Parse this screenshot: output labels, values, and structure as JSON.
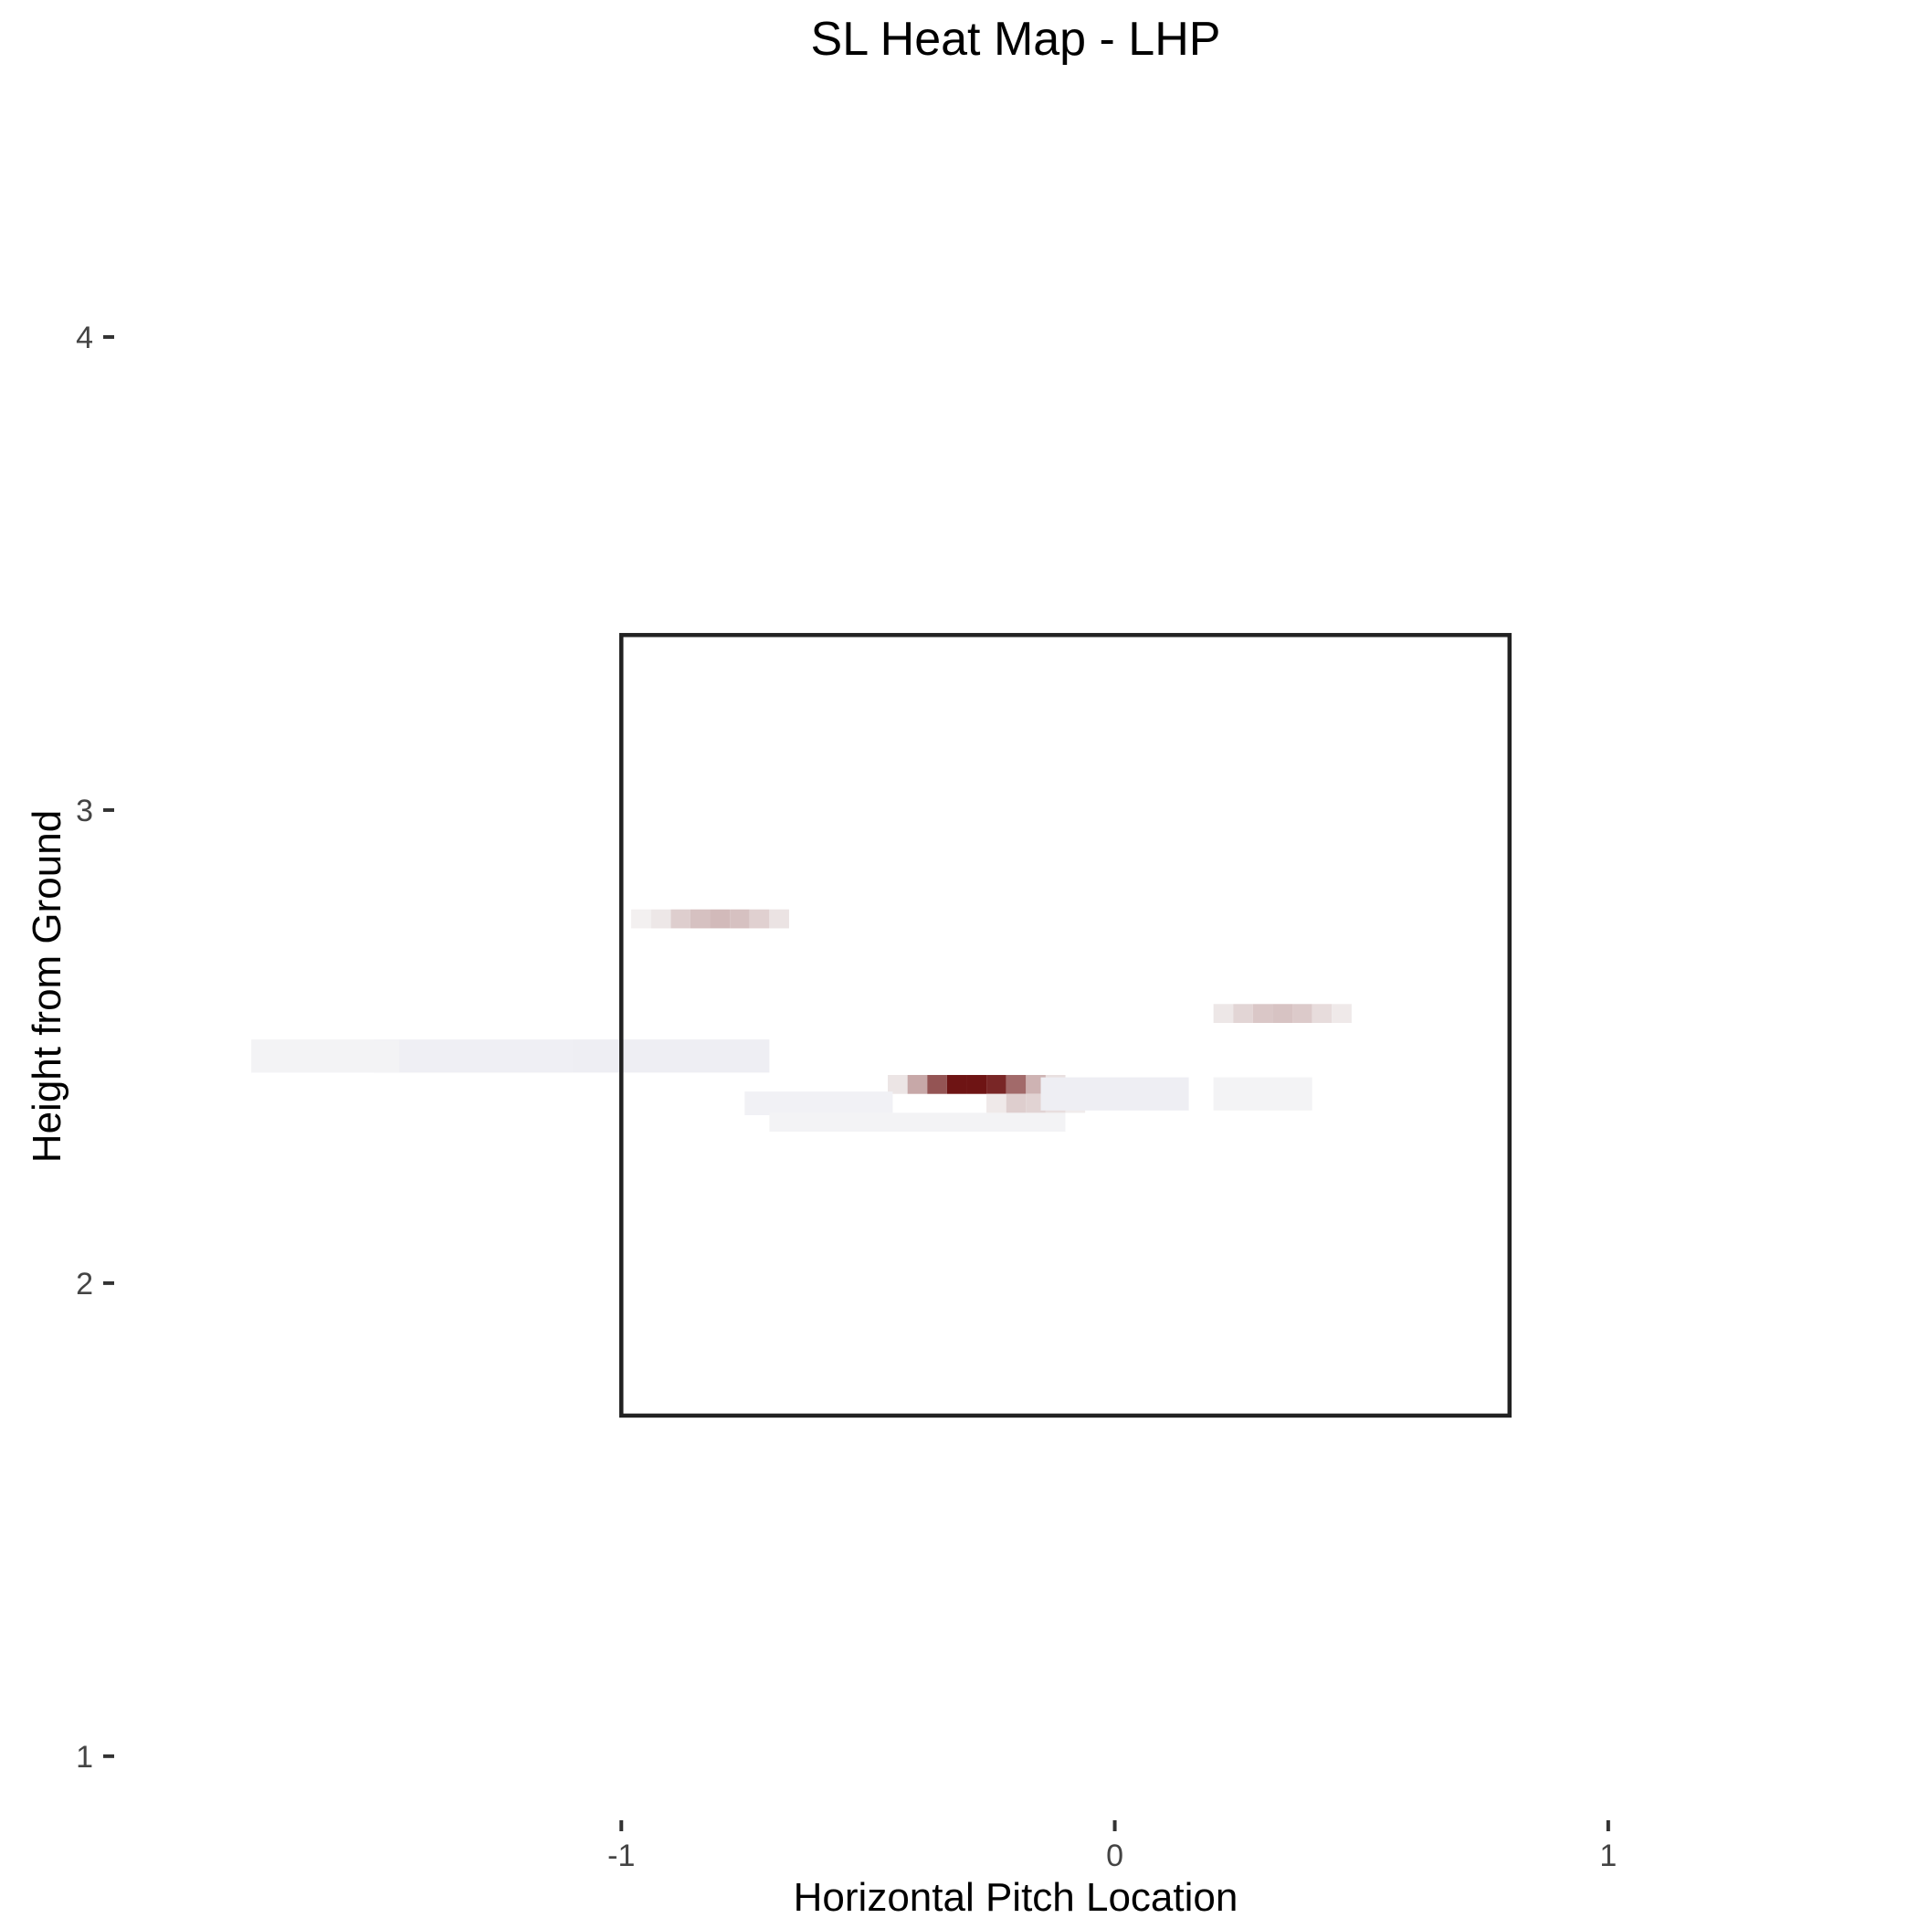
{
  "chart_data": {
    "type": "heatmap",
    "title": "SL Heat Map - LHP",
    "xlabel": "Horizontal Pitch Location",
    "ylabel": "Height from Ground",
    "xlim": [
      -2.0,
      1.6
    ],
    "ylim": [
      0.88,
      4.5
    ],
    "x_ticks": [
      {
        "value": -1,
        "label": "-1"
      },
      {
        "value": 0,
        "label": "0"
      },
      {
        "value": 1,
        "label": "1"
      }
    ],
    "y_ticks": [
      {
        "value": 1,
        "label": "1"
      },
      {
        "value": 2,
        "label": "2"
      },
      {
        "value": 3,
        "label": "3"
      },
      {
        "value": 4,
        "label": "4"
      }
    ],
    "grid": false,
    "legend": "none",
    "strike_zone": {
      "x": [
        -1.0,
        0.8
      ],
      "y": [
        1.72,
        3.37
      ]
    },
    "colors": {
      "high": "#6e1414",
      "mid": "#f7f7f7",
      "low": "#3a3aa8"
    },
    "cells": [
      {
        "x": -0.88,
        "y": 2.77,
        "w": 0.04,
        "h": 0.04,
        "v": 0.18
      },
      {
        "x": -0.84,
        "y": 2.77,
        "w": 0.04,
        "h": 0.04,
        "v": 0.24
      },
      {
        "x": -0.8,
        "y": 2.77,
        "w": 0.04,
        "h": 0.04,
        "v": 0.27
      },
      {
        "x": -0.76,
        "y": 2.77,
        "w": 0.04,
        "h": 0.04,
        "v": 0.24
      },
      {
        "x": -0.72,
        "y": 2.77,
        "w": 0.04,
        "h": 0.04,
        "v": 0.17
      },
      {
        "x": -0.68,
        "y": 2.77,
        "w": 0.04,
        "h": 0.04,
        "v": 0.09
      },
      {
        "x": -0.92,
        "y": 2.77,
        "w": 0.04,
        "h": 0.04,
        "v": 0.07
      },
      {
        "x": -0.96,
        "y": 2.77,
        "w": 0.04,
        "h": 0.04,
        "v": 0.03
      },
      {
        "x": 0.22,
        "y": 2.57,
        "w": 0.04,
        "h": 0.04,
        "v": 0.07
      },
      {
        "x": 0.26,
        "y": 2.57,
        "w": 0.04,
        "h": 0.04,
        "v": 0.15
      },
      {
        "x": 0.3,
        "y": 2.57,
        "w": 0.04,
        "h": 0.04,
        "v": 0.21
      },
      {
        "x": 0.34,
        "y": 2.57,
        "w": 0.04,
        "h": 0.04,
        "v": 0.23
      },
      {
        "x": 0.38,
        "y": 2.57,
        "w": 0.04,
        "h": 0.04,
        "v": 0.2
      },
      {
        "x": 0.42,
        "y": 2.57,
        "w": 0.04,
        "h": 0.04,
        "v": 0.12
      },
      {
        "x": 0.46,
        "y": 2.57,
        "w": 0.04,
        "h": 0.04,
        "v": 0.06
      },
      {
        "x": -0.44,
        "y": 2.42,
        "w": 0.04,
        "h": 0.04,
        "v": 0.08
      },
      {
        "x": -0.4,
        "y": 2.42,
        "w": 0.04,
        "h": 0.04,
        "v": 0.35
      },
      {
        "x": -0.36,
        "y": 2.42,
        "w": 0.04,
        "h": 0.04,
        "v": 0.72
      },
      {
        "x": -0.32,
        "y": 2.42,
        "w": 0.04,
        "h": 0.04,
        "v": 1.0
      },
      {
        "x": -0.28,
        "y": 2.42,
        "w": 0.04,
        "h": 0.04,
        "v": 1.0
      },
      {
        "x": -0.24,
        "y": 2.42,
        "w": 0.04,
        "h": 0.04,
        "v": 0.92
      },
      {
        "x": -0.2,
        "y": 2.42,
        "w": 0.04,
        "h": 0.04,
        "v": 0.62
      },
      {
        "x": -0.16,
        "y": 2.42,
        "w": 0.04,
        "h": 0.04,
        "v": 0.3
      },
      {
        "x": -0.12,
        "y": 2.42,
        "w": 0.04,
        "h": 0.04,
        "v": 0.1
      },
      {
        "x": -0.24,
        "y": 2.38,
        "w": 0.04,
        "h": 0.04,
        "v": 0.06
      },
      {
        "x": -0.2,
        "y": 2.38,
        "w": 0.04,
        "h": 0.04,
        "v": 0.18
      },
      {
        "x": -0.16,
        "y": 2.38,
        "w": 0.04,
        "h": 0.04,
        "v": 0.16
      },
      {
        "x": -0.12,
        "y": 2.38,
        "w": 0.04,
        "h": 0.04,
        "v": 0.11
      },
      {
        "x": -0.08,
        "y": 2.38,
        "w": 0.04,
        "h": 0.04,
        "v": 0.05
      },
      {
        "x": -1.3,
        "y": 2.48,
        "w": 0.4,
        "h": 0.07,
        "v": -0.04
      },
      {
        "x": -0.9,
        "y": 2.48,
        "w": 0.4,
        "h": 0.07,
        "v": -0.05
      },
      {
        "x": -1.6,
        "y": 2.48,
        "w": 0.3,
        "h": 0.07,
        "v": -0.02
      },
      {
        "x": -0.6,
        "y": 2.38,
        "w": 0.3,
        "h": 0.05,
        "v": -0.03
      },
      {
        "x": 0.0,
        "y": 2.4,
        "w": 0.3,
        "h": 0.07,
        "v": -0.05
      },
      {
        "x": 0.3,
        "y": 2.4,
        "w": 0.2,
        "h": 0.07,
        "v": -0.02
      },
      {
        "x": -0.4,
        "y": 2.34,
        "w": 0.6,
        "h": 0.04,
        "v": -0.02
      }
    ]
  }
}
